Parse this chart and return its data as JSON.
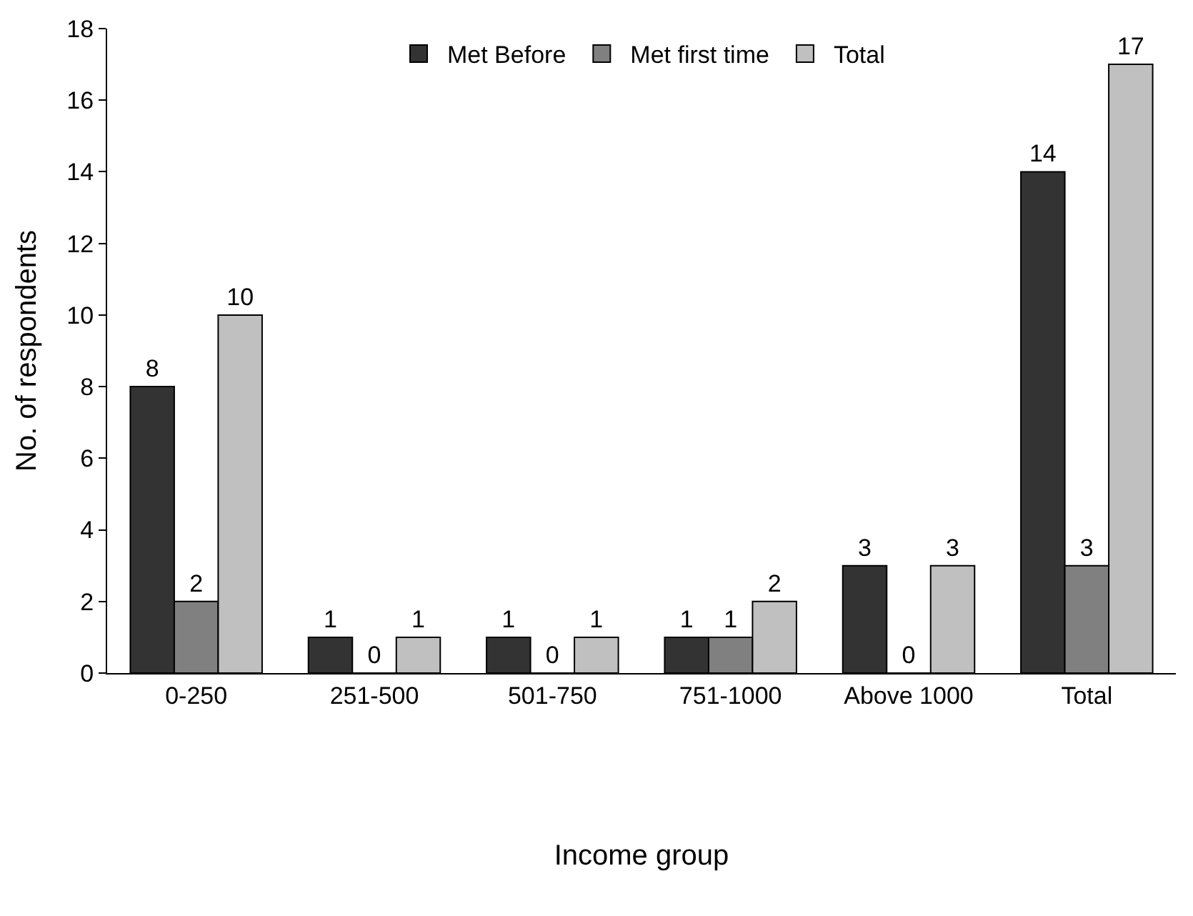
{
  "chart_data": {
    "type": "bar",
    "xlabel": "Income group",
    "ylabel": "No. of respondents",
    "categories": [
      "0-250",
      "251-500",
      "501-750",
      "751-1000",
      "Above 1000",
      "Total"
    ],
    "series": [
      {
        "name": "Met Before",
        "color": "#333333",
        "values": [
          8,
          1,
          1,
          1,
          3,
          14
        ]
      },
      {
        "name": "Met first time",
        "color": "#808080",
        "values": [
          2,
          0,
          0,
          1,
          0,
          3
        ]
      },
      {
        "name": "Total",
        "color": "#c0c0c0",
        "values": [
          10,
          1,
          1,
          2,
          3,
          17
        ]
      }
    ],
    "ylim": [
      0,
      18
    ],
    "yticks": [
      0,
      2,
      4,
      6,
      8,
      10,
      12,
      14,
      16,
      18
    ],
    "grid": false,
    "legend": "top",
    "data_labels": true
  }
}
